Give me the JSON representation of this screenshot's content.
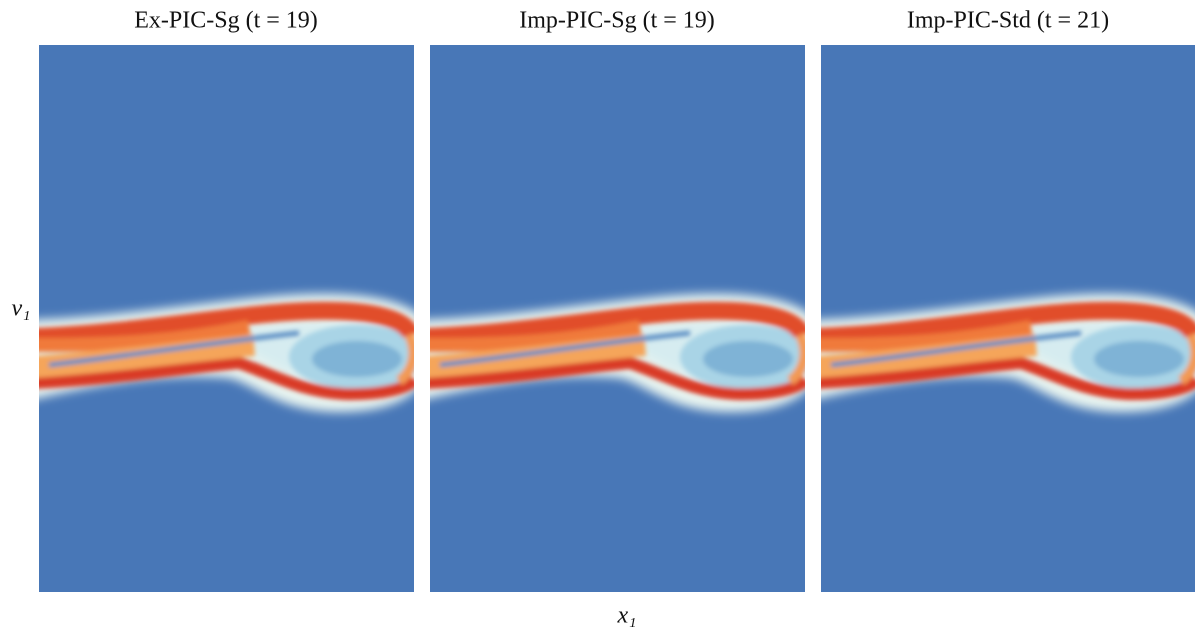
{
  "panels": [
    {
      "title": "Ex-PIC-Sg  (t = 19)"
    },
    {
      "title": "Imp-PIC-Sg (t = 19)"
    },
    {
      "title": "Imp-PIC-Std (t = 21)"
    }
  ],
  "y_label": "v₁",
  "x_label": "x₁"
}
